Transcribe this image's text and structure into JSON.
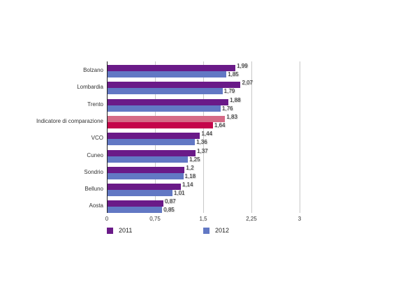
{
  "chart_data": {
    "type": "bar",
    "orientation": "horizontal",
    "title": "",
    "xlabel": "",
    "ylabel": "",
    "xlim": [
      0,
      3
    ],
    "grid": true,
    "legend_position": "bottom",
    "x_ticks": [
      "0",
      "0,75",
      "1,5",
      "2,25",
      "3"
    ],
    "x_tick_values": [
      0,
      0.75,
      1.5,
      2.25,
      3
    ],
    "categories": [
      "Bolzano",
      "Lombardia",
      "Trento",
      "Indicatore di comparazione",
      "VCO",
      "Cuneo",
      "Sondrio",
      "Belluno",
      "Aosta"
    ],
    "series": [
      {
        "name": "2011",
        "color": "#6a1a88",
        "values": [
          1.99,
          2.07,
          1.88,
          1.83,
          1.44,
          1.37,
          1.2,
          1.14,
          0.87
        ],
        "labels": [
          "1,99",
          "2,07",
          "1,88",
          "1,83",
          "1,44",
          "1,37",
          "1,2",
          "1,14",
          "0,87"
        ]
      },
      {
        "name": "2012",
        "color": "#6278c4",
        "values": [
          1.85,
          1.79,
          1.76,
          1.64,
          1.36,
          1.25,
          1.18,
          1.01,
          0.85
        ],
        "labels": [
          "1,85",
          "1,79",
          "1,76",
          "1,64",
          "1,36",
          "1,25",
          "1,18",
          "1,01",
          "0,85"
        ]
      }
    ],
    "highlight": {
      "category": "Indicatore di comparazione",
      "colors": {
        "2011": "#d56a86",
        "2012": "#c4054a"
      }
    }
  },
  "legend": {
    "items": [
      {
        "label": "2011",
        "color": "#6a1a88"
      },
      {
        "label": "2012",
        "color": "#6278c4"
      }
    ]
  }
}
